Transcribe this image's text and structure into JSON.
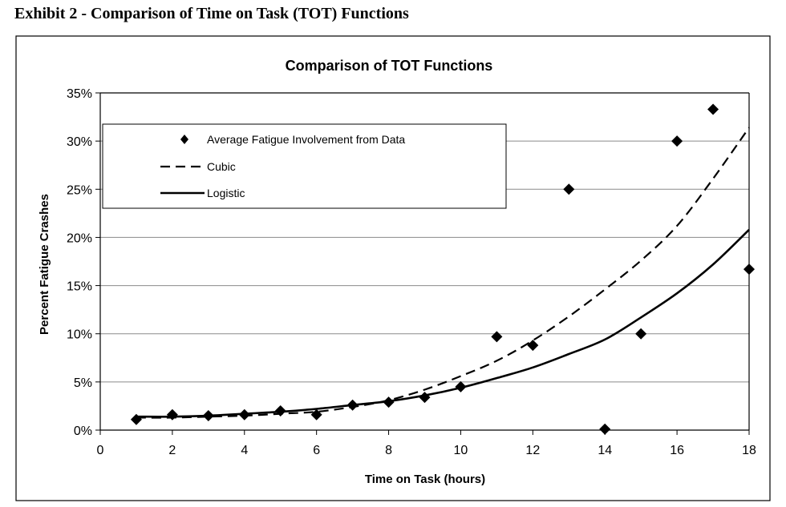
{
  "exhibit": {
    "title": "Exhibit 2 - Comparison of Time on Task (TOT) Functions"
  },
  "chart_data": {
    "type": "scatter",
    "title": "Comparison of TOT Functions",
    "xlabel": "Time on Task (hours)",
    "ylabel": "Percent Fatigue Crashes",
    "xlim": [
      0,
      18
    ],
    "ylim": [
      0,
      35
    ],
    "x_ticks": [
      0,
      2,
      4,
      6,
      8,
      10,
      12,
      14,
      16,
      18
    ],
    "y_ticks": [
      "0%",
      "5%",
      "10%",
      "15%",
      "20%",
      "25%",
      "30%",
      "35%"
    ],
    "grid": "horizontal",
    "legend_position": "top-left",
    "series": [
      {
        "name": "Average Fatigue Involvement from Data",
        "style": "diamond-markers",
        "x": [
          1,
          2,
          3,
          4,
          5,
          6,
          7,
          8,
          9,
          10,
          11,
          12,
          13,
          14,
          15,
          16,
          17,
          18
        ],
        "y": [
          1.1,
          1.6,
          1.5,
          1.6,
          2.0,
          1.6,
          2.6,
          2.9,
          3.4,
          4.5,
          9.7,
          8.8,
          25.0,
          0.1,
          10.0,
          30.0,
          33.3,
          16.7
        ]
      },
      {
        "name": "Cubic",
        "style": "dashed-line",
        "x": [
          1,
          2,
          3,
          4,
          5,
          6,
          7,
          8,
          9,
          10,
          11,
          12,
          13,
          14,
          15,
          16,
          17,
          18
        ],
        "y": [
          1.3,
          1.3,
          1.4,
          1.5,
          1.7,
          1.9,
          2.4,
          3.1,
          4.2,
          5.6,
          7.2,
          9.3,
          11.8,
          14.6,
          17.6,
          21.2,
          26.1,
          31.4
        ]
      },
      {
        "name": "Logistic",
        "style": "solid-line",
        "x": [
          1,
          2,
          3,
          4,
          5,
          6,
          7,
          8,
          9,
          10,
          11,
          12,
          13,
          14,
          15,
          16,
          17,
          18
        ],
        "y": [
          1.4,
          1.4,
          1.5,
          1.7,
          1.9,
          2.2,
          2.6,
          3.0,
          3.6,
          4.4,
          5.4,
          6.5,
          7.9,
          9.4,
          11.7,
          14.2,
          17.2,
          20.8
        ]
      }
    ]
  }
}
